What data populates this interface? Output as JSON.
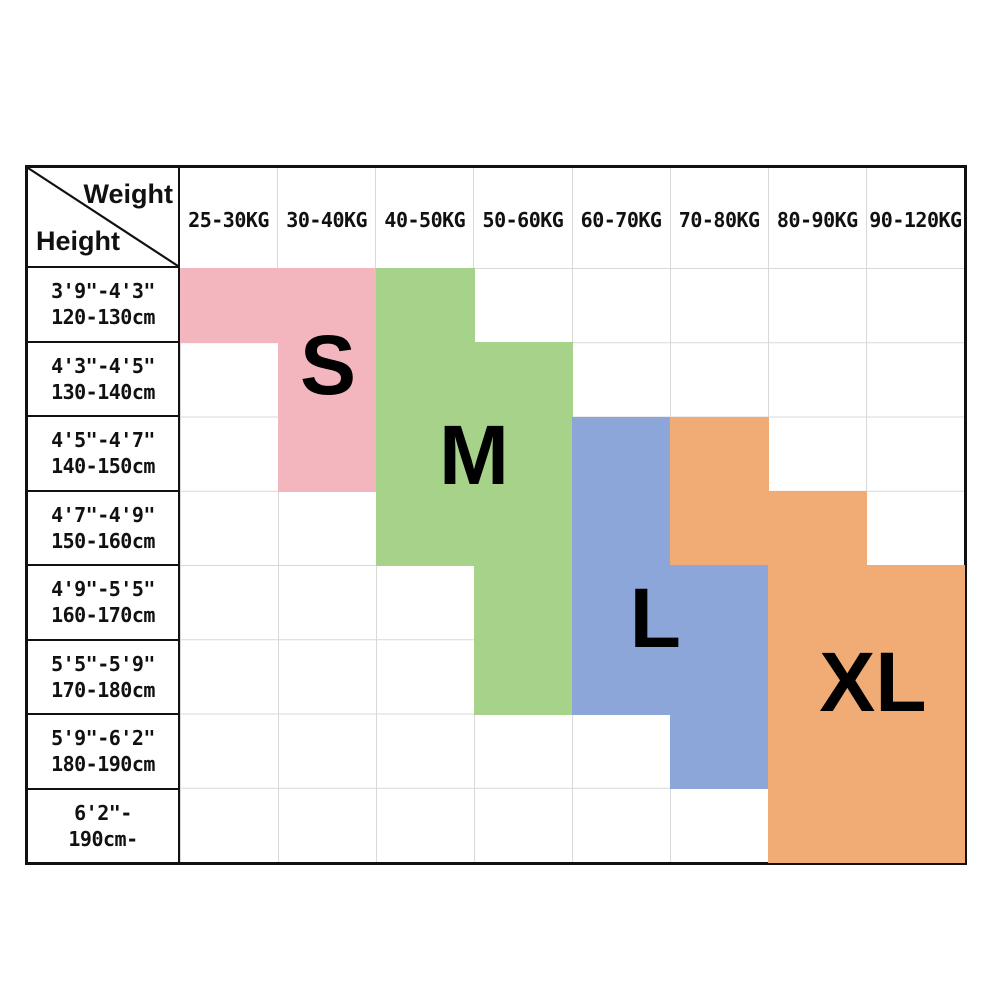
{
  "chart_data": {
    "type": "table",
    "title": "",
    "x_header": "Weight",
    "y_header": "Height",
    "columns": [
      "25-30KG",
      "30-40KG",
      "40-50KG",
      "50-60KG",
      "60-70KG",
      "70-80KG",
      "80-90KG",
      "90-120KG"
    ],
    "rows": [
      {
        "imperial": "3'9\"-4'3\"",
        "metric": "120-130cm"
      },
      {
        "imperial": "4'3\"-4'5\"",
        "metric": "130-140cm"
      },
      {
        "imperial": "4'5\"-4'7\"",
        "metric": "140-150cm"
      },
      {
        "imperial": "4'7\"-4'9\"",
        "metric": "150-160cm"
      },
      {
        "imperial": "4'9\"-5'5\"",
        "metric": "160-170cm"
      },
      {
        "imperial": "5'5\"-5'9\"",
        "metric": "170-180cm"
      },
      {
        "imperial": "5'9\"-6'2\"",
        "metric": "180-190cm"
      },
      {
        "imperial": "6'2\"-",
        "metric": "190cm-"
      }
    ],
    "cells": [
      [
        "S",
        "S",
        "M",
        "",
        "",
        "",
        "",
        ""
      ],
      [
        "",
        "S",
        "M",
        "M",
        "",
        "",
        "",
        ""
      ],
      [
        "",
        "S",
        "M",
        "M",
        "L",
        "XL",
        "",
        ""
      ],
      [
        "",
        "",
        "M",
        "M",
        "L",
        "XL",
        "XL",
        ""
      ],
      [
        "",
        "",
        "",
        "M",
        "L",
        "L",
        "XL",
        "XL"
      ],
      [
        "",
        "",
        "",
        "M",
        "L",
        "L",
        "XL",
        "XL"
      ],
      [
        "",
        "",
        "",
        "",
        "",
        "L",
        "XL",
        "XL"
      ],
      [
        "",
        "",
        "",
        "",
        "",
        "",
        "XL",
        "XL"
      ]
    ],
    "sizes": {
      "S": {
        "label": "S",
        "color": "#f4b6be",
        "letter_anchor": {
          "col": 1.51,
          "row": 1.31
        }
      },
      "M": {
        "label": "M",
        "color": "#a7d28a",
        "letter_anchor": {
          "col": 3.0,
          "row": 2.52
        }
      },
      "L": {
        "label": "L",
        "color": "#8da6d9",
        "letter_anchor": {
          "col": 4.85,
          "row": 4.72
        }
      },
      "XL": {
        "label": "XL",
        "color": "#f0ac74",
        "letter_anchor": {
          "col": 7.07,
          "row": 5.57
        }
      }
    },
    "grid_line_color": "#d9d9d9",
    "border_color": "#111111",
    "legend_position": "none",
    "grid": true
  }
}
